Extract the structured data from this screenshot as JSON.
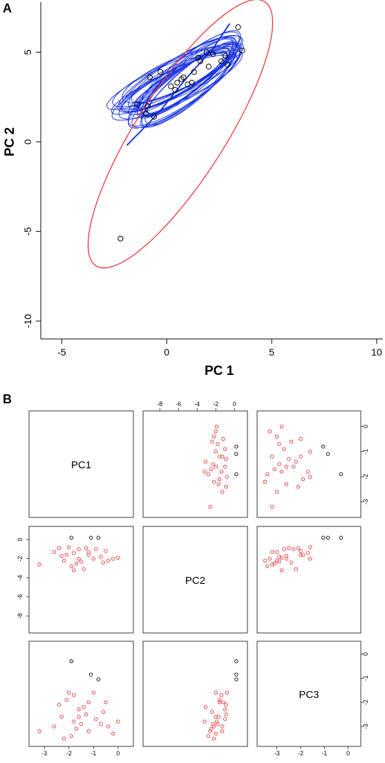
{
  "chart_data": [
    {
      "panel": "A",
      "type": "scatter",
      "xlabel": "PC 1",
      "ylabel": "PC 2",
      "xlim": [
        -6,
        10.3
      ],
      "ylim": [
        -11,
        7.8
      ],
      "xticks": [
        -5,
        0,
        5,
        10
      ],
      "yticks": [
        -10,
        -5,
        0,
        5
      ],
      "colors": {
        "points": "#000000",
        "outer_ellipse": "#e8343a",
        "inner_ellipses": "#1a35e0"
      },
      "points": [
        [
          3.4,
          6.4
        ],
        [
          3.6,
          5.1
        ],
        [
          -2.2,
          -5.4
        ],
        [
          -0.3,
          3.9
        ],
        [
          -0.8,
          3.6
        ],
        [
          -1.4,
          2.1
        ],
        [
          -0.6,
          1.4
        ],
        [
          -0.9,
          2.0
        ],
        [
          0.2,
          3.1
        ],
        [
          0.5,
          3.3
        ],
        [
          0.8,
          3.6
        ],
        [
          1.3,
          3.9
        ],
        [
          1.6,
          4.5
        ],
        [
          2.0,
          4.2
        ],
        [
          2.6,
          4.5
        ],
        [
          2.8,
          4.8
        ],
        [
          2.9,
          4.3
        ],
        [
          2.2,
          4.9
        ],
        [
          1.0,
          3.2
        ],
        [
          0.4,
          2.9
        ],
        [
          1.9,
          5.0
        ],
        [
          1.5,
          4.7
        ],
        [
          0.7,
          3.5
        ],
        [
          1.2,
          3.3
        ],
        [
          -1.0,
          1.6
        ]
      ],
      "outer_ellipse": {
        "center": [
          0.65,
          0.45
        ],
        "semi_major": 8.4,
        "semi_minor": 2.2,
        "angle_deg": 62
      },
      "inner_ellipse_count": 28
    },
    {
      "panel": "B",
      "type": "scatter",
      "matrix": [
        "PC1",
        "PC2",
        "PC3"
      ],
      "colors": {
        "points": "#e8343a",
        "highlight": "#000000"
      },
      "pc1_ticks": [
        -3,
        -2,
        -1,
        0
      ],
      "pc2_ticks": [
        -8,
        -6,
        -4,
        -2,
        0
      ],
      "pc3_ticks": [
        -3,
        -2,
        -1,
        0
      ],
      "pc1_range": [
        -3.4,
        0.4
      ],
      "pc2_range": [
        -9.2,
        0.8
      ],
      "pc3_range": [
        -3.6,
        0.3
      ],
      "points": [
        {
          "pc1": -1.1,
          "pc2": 0.2,
          "pc3": -0.85,
          "highlight": true
        },
        {
          "pc1": -0.8,
          "pc2": 0.2,
          "pc3": -1.05,
          "highlight": true
        },
        {
          "pc1": -1.9,
          "pc2": 0.2,
          "pc3": -0.3,
          "highlight": true
        },
        {
          "pc1": -3.2,
          "pc2": -2.6,
          "pc3": -3.2,
          "highlight": false
        },
        {
          "pc1": -2.0,
          "pc2": -0.8,
          "pc3": -1.6,
          "highlight": false
        },
        {
          "pc1": -1.8,
          "pc2": -1.4,
          "pc3": -1.7,
          "highlight": false
        },
        {
          "pc1": -1.6,
          "pc2": -1.0,
          "pc3": -2.3,
          "highlight": false
        },
        {
          "pc1": -1.3,
          "pc2": -0.9,
          "pc3": -2.5,
          "highlight": false
        },
        {
          "pc1": -1.2,
          "pc2": -1.6,
          "pc3": -2.0,
          "highlight": false
        },
        {
          "pc1": -0.9,
          "pc2": -1.0,
          "pc3": -2.7,
          "highlight": false
        },
        {
          "pc1": -0.7,
          "pc2": -1.8,
          "pc3": -2.9,
          "highlight": false
        },
        {
          "pc1": -0.4,
          "pc2": -2.2,
          "pc3": -3.0,
          "highlight": false
        },
        {
          "pc1": -0.2,
          "pc2": -2.0,
          "pc3": -3.3,
          "highlight": false
        },
        {
          "pc1": 0.0,
          "pc2": -1.9,
          "pc3": -2.8,
          "highlight": false
        },
        {
          "pc1": -2.4,
          "pc2": -0.9,
          "pc3": -2.1,
          "highlight": false
        },
        {
          "pc1": -2.3,
          "pc2": -1.7,
          "pc3": -2.6,
          "highlight": false
        },
        {
          "pc1": -2.6,
          "pc2": -1.3,
          "pc3": -3.0,
          "highlight": false
        },
        {
          "pc1": -1.5,
          "pc2": -2.3,
          "pc3": -2.9,
          "highlight": false
        },
        {
          "pc1": -1.7,
          "pc2": -2.5,
          "pc3": -3.1,
          "highlight": false
        },
        {
          "pc1": -1.9,
          "pc2": -2.8,
          "pc3": -3.4,
          "highlight": false
        },
        {
          "pc1": -1.4,
          "pc2": -3.1,
          "pc3": -2.2,
          "highlight": false
        },
        {
          "pc1": -1.0,
          "pc2": -2.0,
          "pc3": -1.6,
          "highlight": false
        },
        {
          "pc1": -0.5,
          "pc2": -1.2,
          "pc3": -2.0,
          "highlight": false
        },
        {
          "pc1": -2.1,
          "pc2": -1.6,
          "pc3": -1.9,
          "highlight": false
        },
        {
          "pc1": -1.6,
          "pc2": -2.0,
          "pc3": -2.6,
          "highlight": false
        },
        {
          "pc1": -1.2,
          "pc2": -1.3,
          "pc3": -3.2,
          "highlight": false
        },
        {
          "pc1": -0.6,
          "pc2": -2.4,
          "pc3": -2.4,
          "highlight": false
        },
        {
          "pc1": -2.2,
          "pc2": -2.2,
          "pc3": -3.5,
          "highlight": false
        },
        {
          "pc1": -1.8,
          "pc2": -3.2,
          "pc3": -2.8,
          "highlight": false
        }
      ]
    }
  ],
  "labels": {
    "panel_a": "A",
    "panel_b": "B"
  }
}
